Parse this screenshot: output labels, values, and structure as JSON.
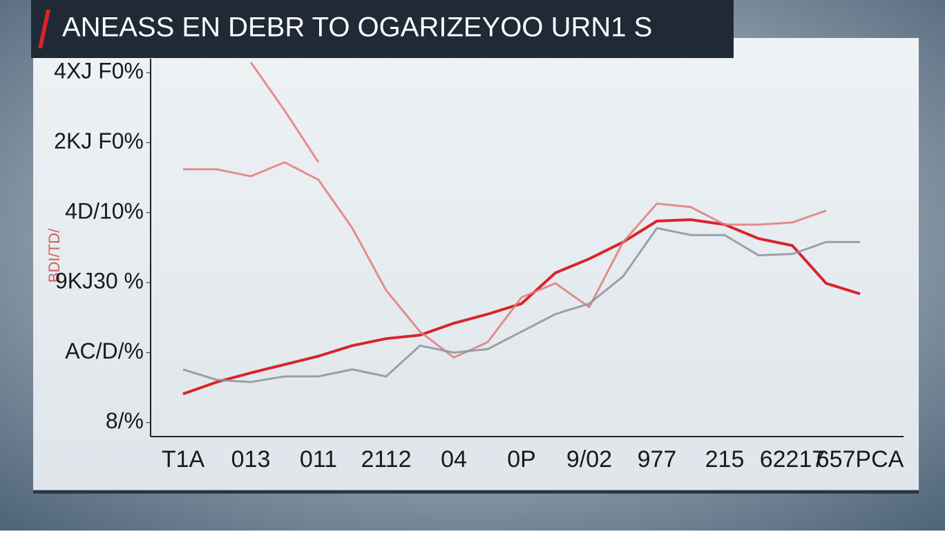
{
  "chart_data": {
    "type": "line",
    "title": "ANEASS EN DEBR TO OGARIZEYOO URN1 S",
    "y_label": "BDI/TD/",
    "categories": [
      "T1A",
      null,
      "013",
      null,
      "011",
      null,
      "2112",
      null,
      "04",
      null,
      "0P",
      null,
      "9/02",
      null,
      "977",
      null,
      "215",
      null,
      "62217",
      null,
      "657PCA"
    ],
    "ylim": [
      -0.2,
      5.2
    ],
    "yticks": [
      {
        "value": 0,
        "label": "8/%"
      },
      {
        "value": 1,
        "label": "AC/D/%"
      },
      {
        "value": 2,
        "label": "9KJ30 %"
      },
      {
        "value": 3,
        "label": "4D/10%"
      },
      {
        "value": 4,
        "label": "2KJ F0%"
      },
      {
        "value": 5,
        "label": "4XJ F0%"
      }
    ],
    "series": [
      {
        "color": "#d8242a",
        "values": [
          0.41,
          0.58,
          0.71,
          0.83,
          0.95,
          1.1,
          1.2,
          1.25,
          1.42,
          1.55,
          1.7,
          2.14,
          2.34,
          2.58,
          2.88,
          2.9,
          2.83,
          2.63,
          2.53,
          1.99,
          1.84
        ]
      },
      {
        "color": "#e07b7b",
        "values": [
          3.62,
          3.62,
          3.52,
          3.72,
          3.47,
          2.78,
          1.89,
          1.3,
          0.93,
          1.15,
          1.79,
          1.99,
          1.65,
          2.58,
          3.13,
          3.08,
          2.83,
          2.83,
          2.86,
          3.03,
          null
        ]
      },
      {
        "color": "#e07b7b",
        "values": [
          null,
          null,
          5.15,
          4.46,
          3.72,
          null,
          null,
          null,
          null,
          null,
          null,
          null,
          null,
          null,
          null,
          null,
          null,
          null,
          null,
          null,
          null
        ]
      },
      {
        "color": "#8a939c",
        "values": [
          0.76,
          0.61,
          0.58,
          0.66,
          0.66,
          0.76,
          0.66,
          1.1,
          1.0,
          1.05,
          1.3,
          1.55,
          1.7,
          2.09,
          2.78,
          2.68,
          2.68,
          2.39,
          2.41,
          2.58,
          2.58
        ]
      }
    ]
  }
}
